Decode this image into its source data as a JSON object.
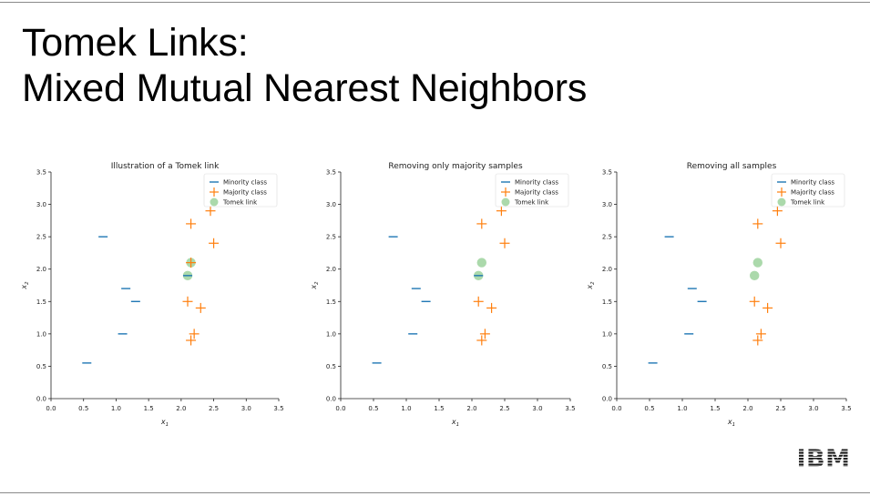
{
  "slide": {
    "title_line1": "Tomek Links:",
    "title_line2": "Mixed Mutual Nearest Neighbors",
    "logo": "IBM"
  },
  "colors": {
    "minority": "#1f77b4",
    "majority": "#ff7f0e",
    "tomek": "#2ca02c"
  },
  "chart_data": [
    {
      "type": "scatter",
      "title": "Illustration of a Tomek link",
      "xlabel": "x1",
      "ylabel": "x2",
      "xlim": [
        0,
        3.5
      ],
      "ylim": [
        0,
        3.5
      ],
      "xticks": [
        "0.0",
        "0.5",
        "1.0",
        "1.5",
        "2.0",
        "2.5",
        "3.0",
        "3.5"
      ],
      "yticks": [
        "0.0",
        "0.5",
        "1.0",
        "1.5",
        "2.0",
        "2.5",
        "3.0",
        "3.5"
      ],
      "legend": [
        "Minority class",
        "Majority class",
        "Tomek link"
      ],
      "legend_loc": "upper right",
      "series": [
        {
          "name": "Minority class",
          "marker": "_",
          "points": [
            [
              0.8,
              2.5
            ],
            [
              1.15,
              1.7
            ],
            [
              1.3,
              1.5
            ],
            [
              1.1,
              1.0
            ],
            [
              0.55,
              0.55
            ],
            [
              2.1,
              1.9
            ]
          ]
        },
        {
          "name": "Majority class",
          "marker": "+",
          "points": [
            [
              2.15,
              2.7
            ],
            [
              2.45,
              2.9
            ],
            [
              2.5,
              2.4
            ],
            [
              2.15,
              2.1
            ],
            [
              2.1,
              1.5
            ],
            [
              2.3,
              1.4
            ],
            [
              2.2,
              1.0
            ],
            [
              2.15,
              0.9
            ]
          ]
        },
        {
          "name": "Tomek link",
          "marker": "o",
          "points": [
            [
              2.15,
              2.1
            ],
            [
              2.1,
              1.9
            ]
          ]
        }
      ]
    },
    {
      "type": "scatter",
      "title": "Removing only majority samples",
      "xlabel": "x1",
      "ylabel": "x2",
      "xlim": [
        0,
        3.5
      ],
      "ylim": [
        0,
        3.5
      ],
      "xticks": [
        "0.0",
        "0.5",
        "1.0",
        "1.5",
        "2.0",
        "2.5",
        "3.0",
        "3.5"
      ],
      "yticks": [
        "0.0",
        "0.5",
        "1.0",
        "1.5",
        "2.0",
        "2.5",
        "3.0",
        "3.5"
      ],
      "legend": [
        "Minority class",
        "Majority class",
        "Tomek link"
      ],
      "legend_loc": "upper right",
      "series": [
        {
          "name": "Minority class",
          "marker": "_",
          "points": [
            [
              0.8,
              2.5
            ],
            [
              1.15,
              1.7
            ],
            [
              1.3,
              1.5
            ],
            [
              1.1,
              1.0
            ],
            [
              0.55,
              0.55
            ],
            [
              2.1,
              1.9
            ]
          ]
        },
        {
          "name": "Majority class",
          "marker": "+",
          "points": [
            [
              2.15,
              2.7
            ],
            [
              2.45,
              2.9
            ],
            [
              2.5,
              2.4
            ],
            [
              2.1,
              1.5
            ],
            [
              2.3,
              1.4
            ],
            [
              2.2,
              1.0
            ],
            [
              2.15,
              0.9
            ]
          ]
        },
        {
          "name": "Tomek link",
          "marker": "o",
          "points": [
            [
              2.15,
              2.1
            ],
            [
              2.1,
              1.9
            ]
          ]
        }
      ]
    },
    {
      "type": "scatter",
      "title": "Removing all samples",
      "xlabel": "x1",
      "ylabel": "x2",
      "xlim": [
        0,
        3.5
      ],
      "ylim": [
        0,
        3.5
      ],
      "xticks": [
        "0.0",
        "0.5",
        "1.0",
        "1.5",
        "2.0",
        "2.5",
        "3.0",
        "3.5"
      ],
      "yticks": [
        "0.0",
        "0.5",
        "1.0",
        "1.5",
        "2.0",
        "2.5",
        "3.0",
        "3.5"
      ],
      "legend": [
        "Minority class",
        "Majority class",
        "Tomek link"
      ],
      "legend_loc": "upper right",
      "series": [
        {
          "name": "Minority class",
          "marker": "_",
          "points": [
            [
              0.8,
              2.5
            ],
            [
              1.15,
              1.7
            ],
            [
              1.3,
              1.5
            ],
            [
              1.1,
              1.0
            ],
            [
              0.55,
              0.55
            ]
          ]
        },
        {
          "name": "Majority class",
          "marker": "+",
          "points": [
            [
              2.15,
              2.7
            ],
            [
              2.45,
              2.9
            ],
            [
              2.5,
              2.4
            ],
            [
              2.1,
              1.5
            ],
            [
              2.3,
              1.4
            ],
            [
              2.2,
              1.0
            ],
            [
              2.15,
              0.9
            ]
          ]
        },
        {
          "name": "Tomek link",
          "marker": "o",
          "points": [
            [
              2.15,
              2.1
            ],
            [
              2.1,
              1.9
            ]
          ]
        }
      ]
    }
  ]
}
